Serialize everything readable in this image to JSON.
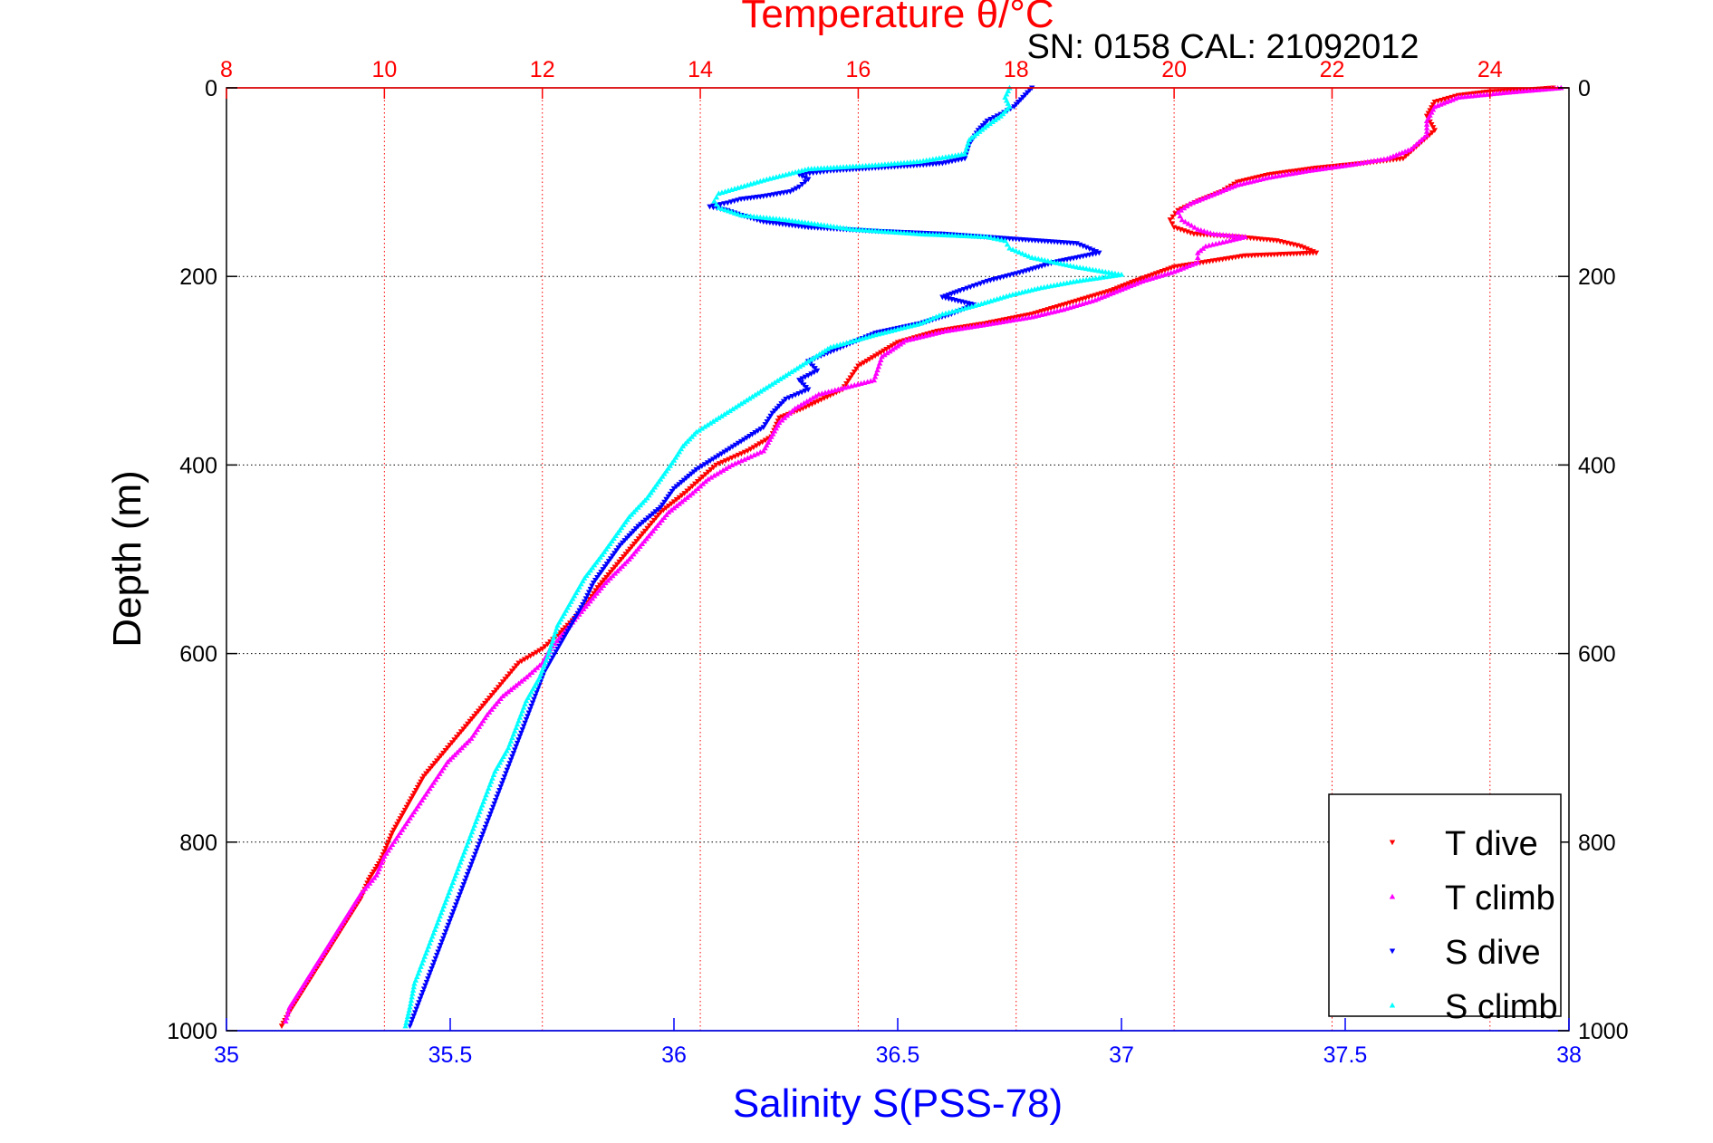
{
  "chart_data": {
    "type": "scatter",
    "title": "Temperature θ/°C",
    "subtitle": "SN: 0158  CAL: 21092012",
    "xlabel": "Salinity S(PSS-78)",
    "ylabel": "Depth (m)",
    "x_bottom": {
      "label": "Salinity S(PSS-78)",
      "range": [
        35,
        38
      ],
      "ticks": [
        "35",
        "35.5",
        "36",
        "36.5",
        "37",
        "37.5",
        "38"
      ],
      "color": "#0000ff"
    },
    "x_top": {
      "label": "Temperature θ/°C",
      "range": [
        8,
        25
      ],
      "ticks": [
        "8",
        "10",
        "12",
        "14",
        "16",
        "18",
        "20",
        "22",
        "24"
      ],
      "color": "#ff0000"
    },
    "y": {
      "label": "Depth (m)",
      "range": [
        0,
        1000
      ],
      "reversed": true,
      "ticks": [
        "0",
        "200",
        "400",
        "600",
        "800",
        "1000"
      ]
    },
    "grid": true,
    "legend_position": "bottom-right",
    "series": [
      {
        "name": "T dive",
        "axis": "temperature",
        "color": "#ff0000",
        "marker": "triangle-down",
        "points": [
          [
            24.8,
            0
          ],
          [
            24.5,
            2
          ],
          [
            24,
            4
          ],
          [
            23.6,
            8
          ],
          [
            23.3,
            15
          ],
          [
            23.2,
            30
          ],
          [
            23.3,
            45
          ],
          [
            23.1,
            60
          ],
          [
            22.9,
            75
          ],
          [
            22.4,
            80
          ],
          [
            21.8,
            85
          ],
          [
            21.2,
            92
          ],
          [
            20.8,
            100
          ],
          [
            20.6,
            110
          ],
          [
            20.3,
            120
          ],
          [
            20.05,
            130
          ],
          [
            19.95,
            140
          ],
          [
            20.0,
            148
          ],
          [
            20.25,
            155
          ],
          [
            20.8,
            158
          ],
          [
            21.3,
            162
          ],
          [
            21.6,
            168
          ],
          [
            21.8,
            175
          ],
          [
            20.9,
            178
          ],
          [
            20.0,
            190
          ],
          [
            19.5,
            205
          ],
          [
            19.2,
            215
          ],
          [
            18.6,
            230
          ],
          [
            18.2,
            240
          ],
          [
            17.6,
            250
          ],
          [
            17.0,
            258
          ],
          [
            16.5,
            270
          ],
          [
            16.0,
            295
          ],
          [
            15.8,
            320
          ],
          [
            15.3,
            340
          ],
          [
            15.0,
            350
          ],
          [
            14.9,
            370
          ],
          [
            14.6,
            385
          ],
          [
            14.2,
            400
          ],
          [
            14.0,
            415
          ],
          [
            13.8,
            430
          ],
          [
            13.5,
            450
          ],
          [
            13.3,
            470
          ],
          [
            13.0,
            500
          ],
          [
            12.7,
            530
          ],
          [
            12.5,
            555
          ],
          [
            12.2,
            580
          ],
          [
            12.0,
            595
          ],
          [
            11.7,
            610
          ],
          [
            11.5,
            630
          ],
          [
            11.3,
            650
          ],
          [
            11.0,
            680
          ],
          [
            10.8,
            700
          ],
          [
            10.5,
            730
          ],
          [
            10.3,
            760
          ],
          [
            10.1,
            790
          ],
          [
            9.95,
            820
          ],
          [
            9.8,
            840
          ],
          [
            9.7,
            860
          ],
          [
            9.55,
            880
          ],
          [
            9.4,
            900
          ],
          [
            9.25,
            920
          ],
          [
            9.1,
            940
          ],
          [
            8.95,
            960
          ],
          [
            8.8,
            980
          ],
          [
            8.7,
            995
          ]
        ]
      },
      {
        "name": "T climb",
        "axis": "temperature",
        "color": "#ff00ff",
        "marker": "triangle-up",
        "points": [
          [
            24.9,
            0
          ],
          [
            24.2,
            5
          ],
          [
            23.6,
            10
          ],
          [
            23.3,
            20
          ],
          [
            23.2,
            35
          ],
          [
            23.2,
            50
          ],
          [
            23.0,
            65
          ],
          [
            22.7,
            75
          ],
          [
            22.2,
            82
          ],
          [
            21.7,
            88
          ],
          [
            21.2,
            95
          ],
          [
            20.8,
            103
          ],
          [
            20.5,
            113
          ],
          [
            20.2,
            123
          ],
          [
            20.05,
            132
          ],
          [
            20.1,
            140
          ],
          [
            20.3,
            150
          ],
          [
            20.5,
            155
          ],
          [
            20.9,
            158
          ],
          [
            20.7,
            162
          ],
          [
            20.4,
            168
          ],
          [
            20.3,
            175
          ],
          [
            20.3,
            185
          ],
          [
            20.0,
            195
          ],
          [
            19.6,
            205
          ],
          [
            19.3,
            215
          ],
          [
            19.0,
            225
          ],
          [
            18.6,
            235
          ],
          [
            18.2,
            243
          ],
          [
            17.7,
            250
          ],
          [
            17.1,
            258
          ],
          [
            16.6,
            268
          ],
          [
            16.3,
            285
          ],
          [
            16.2,
            310
          ],
          [
            15.5,
            325
          ],
          [
            15.2,
            340
          ],
          [
            15.0,
            355
          ],
          [
            14.9,
            370
          ],
          [
            14.8,
            385
          ],
          [
            14.4,
            400
          ],
          [
            14.1,
            415
          ],
          [
            13.9,
            430
          ],
          [
            13.6,
            450
          ],
          [
            13.4,
            470
          ],
          [
            13.1,
            500
          ],
          [
            12.8,
            525
          ],
          [
            12.55,
            550
          ],
          [
            12.3,
            575
          ],
          [
            12.1,
            595
          ],
          [
            12.0,
            610
          ],
          [
            11.8,
            625
          ],
          [
            11.5,
            645
          ],
          [
            11.3,
            665
          ],
          [
            11.1,
            690
          ],
          [
            10.8,
            715
          ],
          [
            10.6,
            740
          ],
          [
            10.4,
            765
          ],
          [
            10.2,
            790
          ],
          [
            10.0,
            815
          ],
          [
            9.9,
            835
          ],
          [
            9.7,
            855
          ],
          [
            9.55,
            875
          ],
          [
            9.4,
            895
          ],
          [
            9.25,
            915
          ],
          [
            9.1,
            935
          ],
          [
            8.95,
            955
          ],
          [
            8.8,
            975
          ],
          [
            8.75,
            990
          ]
        ]
      },
      {
        "name": "S dive",
        "axis": "salinity",
        "color": "#0000ff",
        "marker": "triangle-down",
        "points": [
          [
            36.8,
            0
          ],
          [
            36.78,
            10
          ],
          [
            36.76,
            20
          ],
          [
            36.73,
            28
          ],
          [
            36.7,
            35
          ],
          [
            36.68,
            45
          ],
          [
            36.66,
            60
          ],
          [
            36.65,
            75
          ],
          [
            36.6,
            80
          ],
          [
            36.55,
            82
          ],
          [
            36.45,
            85
          ],
          [
            36.35,
            88
          ],
          [
            36.28,
            92
          ],
          [
            36.3,
            97
          ],
          [
            36.28,
            105
          ],
          [
            36.26,
            110
          ],
          [
            36.2,
            115
          ],
          [
            36.15,
            118
          ],
          [
            36.12,
            122
          ],
          [
            36.08,
            126
          ],
          [
            36.12,
            130
          ],
          [
            36.15,
            135
          ],
          [
            36.2,
            142
          ],
          [
            36.3,
            148
          ],
          [
            36.45,
            152
          ],
          [
            36.6,
            155
          ],
          [
            36.75,
            160
          ],
          [
            36.9,
            165
          ],
          [
            36.95,
            175
          ],
          [
            36.85,
            185
          ],
          [
            36.78,
            195
          ],
          [
            36.7,
            205
          ],
          [
            36.64,
            215
          ],
          [
            36.6,
            222
          ],
          [
            36.67,
            230
          ],
          [
            36.62,
            240
          ],
          [
            36.55,
            250
          ],
          [
            36.45,
            260
          ],
          [
            36.4,
            270
          ],
          [
            36.35,
            280
          ],
          [
            36.3,
            290
          ],
          [
            36.32,
            300
          ],
          [
            36.28,
            310
          ],
          [
            36.3,
            320
          ],
          [
            36.25,
            330
          ],
          [
            36.22,
            345
          ],
          [
            36.2,
            360
          ],
          [
            36.15,
            375
          ],
          [
            36.1,
            390
          ],
          [
            36.05,
            405
          ],
          [
            36.0,
            425
          ],
          [
            35.97,
            445
          ],
          [
            35.92,
            465
          ],
          [
            35.88,
            485
          ],
          [
            35.85,
            505
          ],
          [
            35.82,
            525
          ],
          [
            35.8,
            545
          ],
          [
            35.77,
            570
          ],
          [
            35.74,
            595
          ],
          [
            35.71,
            620
          ],
          [
            35.69,
            645
          ],
          [
            35.67,
            670
          ],
          [
            35.65,
            695
          ],
          [
            35.63,
            720
          ],
          [
            35.61,
            745
          ],
          [
            35.59,
            770
          ],
          [
            35.57,
            795
          ],
          [
            35.55,
            820
          ],
          [
            35.53,
            845
          ],
          [
            35.51,
            870
          ],
          [
            35.49,
            895
          ],
          [
            35.47,
            920
          ],
          [
            35.45,
            945
          ],
          [
            35.43,
            970
          ],
          [
            35.41,
            995
          ]
        ]
      },
      {
        "name": "S climb",
        "axis": "salinity",
        "color": "#00ffff",
        "marker": "triangle-up",
        "points": [
          [
            36.75,
            0
          ],
          [
            36.74,
            10
          ],
          [
            36.75,
            20
          ],
          [
            36.73,
            30
          ],
          [
            36.7,
            40
          ],
          [
            36.66,
            55
          ],
          [
            36.65,
            70
          ],
          [
            36.55,
            78
          ],
          [
            36.45,
            82
          ],
          [
            36.3,
            86
          ],
          [
            36.25,
            92
          ],
          [
            36.2,
            98
          ],
          [
            36.15,
            105
          ],
          [
            36.1,
            112
          ],
          [
            36.09,
            120
          ],
          [
            36.1,
            127
          ],
          [
            36.15,
            135
          ],
          [
            36.25,
            140
          ],
          [
            36.4,
            150
          ],
          [
            36.55,
            155
          ],
          [
            36.7,
            158
          ],
          [
            36.74,
            162
          ],
          [
            36.75,
            170
          ],
          [
            36.8,
            180
          ],
          [
            36.9,
            190
          ],
          [
            37.0,
            198
          ],
          [
            36.9,
            205
          ],
          [
            36.82,
            212
          ],
          [
            36.75,
            220
          ],
          [
            36.68,
            230
          ],
          [
            36.6,
            240
          ],
          [
            36.55,
            250
          ],
          [
            36.45,
            262
          ],
          [
            36.35,
            275
          ],
          [
            36.3,
            290
          ],
          [
            36.25,
            305
          ],
          [
            36.2,
            320
          ],
          [
            36.15,
            335
          ],
          [
            36.1,
            350
          ],
          [
            36.05,
            365
          ],
          [
            36.02,
            380
          ],
          [
            36.0,
            395
          ],
          [
            35.97,
            415
          ],
          [
            35.94,
            435
          ],
          [
            35.9,
            455
          ],
          [
            35.87,
            475
          ],
          [
            35.84,
            495
          ],
          [
            35.8,
            520
          ],
          [
            35.77,
            545
          ],
          [
            35.74,
            570
          ],
          [
            35.72,
            600
          ],
          [
            35.7,
            625
          ],
          [
            35.67,
            650
          ],
          [
            35.65,
            675
          ],
          [
            35.63,
            700
          ],
          [
            35.6,
            725
          ],
          [
            35.58,
            750
          ],
          [
            35.56,
            775
          ],
          [
            35.54,
            800
          ],
          [
            35.52,
            825
          ],
          [
            35.5,
            850
          ],
          [
            35.48,
            875
          ],
          [
            35.46,
            900
          ],
          [
            35.44,
            925
          ],
          [
            35.42,
            950
          ],
          [
            35.41,
            975
          ],
          [
            35.4,
            995
          ]
        ]
      }
    ]
  }
}
